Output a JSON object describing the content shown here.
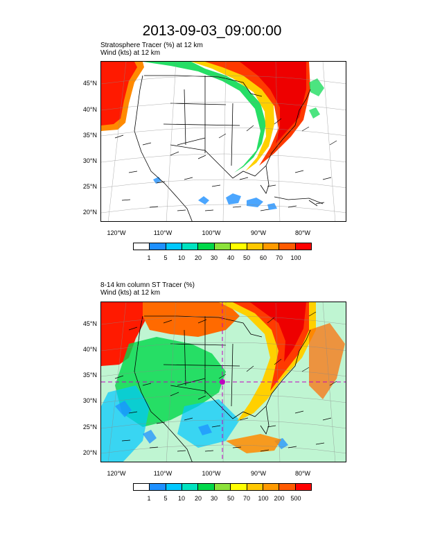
{
  "title": "2013-09-03_09:00:00",
  "panel1": {
    "line1": "Stratosphere Tracer   (%)     at   12 km",
    "line2": "Wind   (kts)     at   12 km",
    "colorbar_labels": [
      "1",
      "5",
      "10",
      "20",
      "30",
      "40",
      "50",
      "60",
      "70",
      "100"
    ]
  },
  "panel2": {
    "line1": "8-14 km column ST Tracer   (%)",
    "line2": "Wind   (kts)     at   12 km",
    "colorbar_labels": [
      "1",
      "5",
      "10",
      "20",
      "30",
      "50",
      "70",
      "100",
      "200",
      "500"
    ]
  },
  "lat_labels": [
    "45°N",
    "40°N",
    "35°N",
    "30°N",
    "25°N",
    "20°N"
  ],
  "lon_labels": [
    "120°W",
    "110°W",
    "100°W",
    "90°W",
    "80°W"
  ],
  "colorbar_colors": [
    "#ffffff",
    "#1e90ff",
    "#00c8ff",
    "#00e3c0",
    "#00d84a",
    "#8ce23a",
    "#ffff00",
    "#ffc800",
    "#ff9a00",
    "#ff5a00",
    "#ff0000"
  ]
}
